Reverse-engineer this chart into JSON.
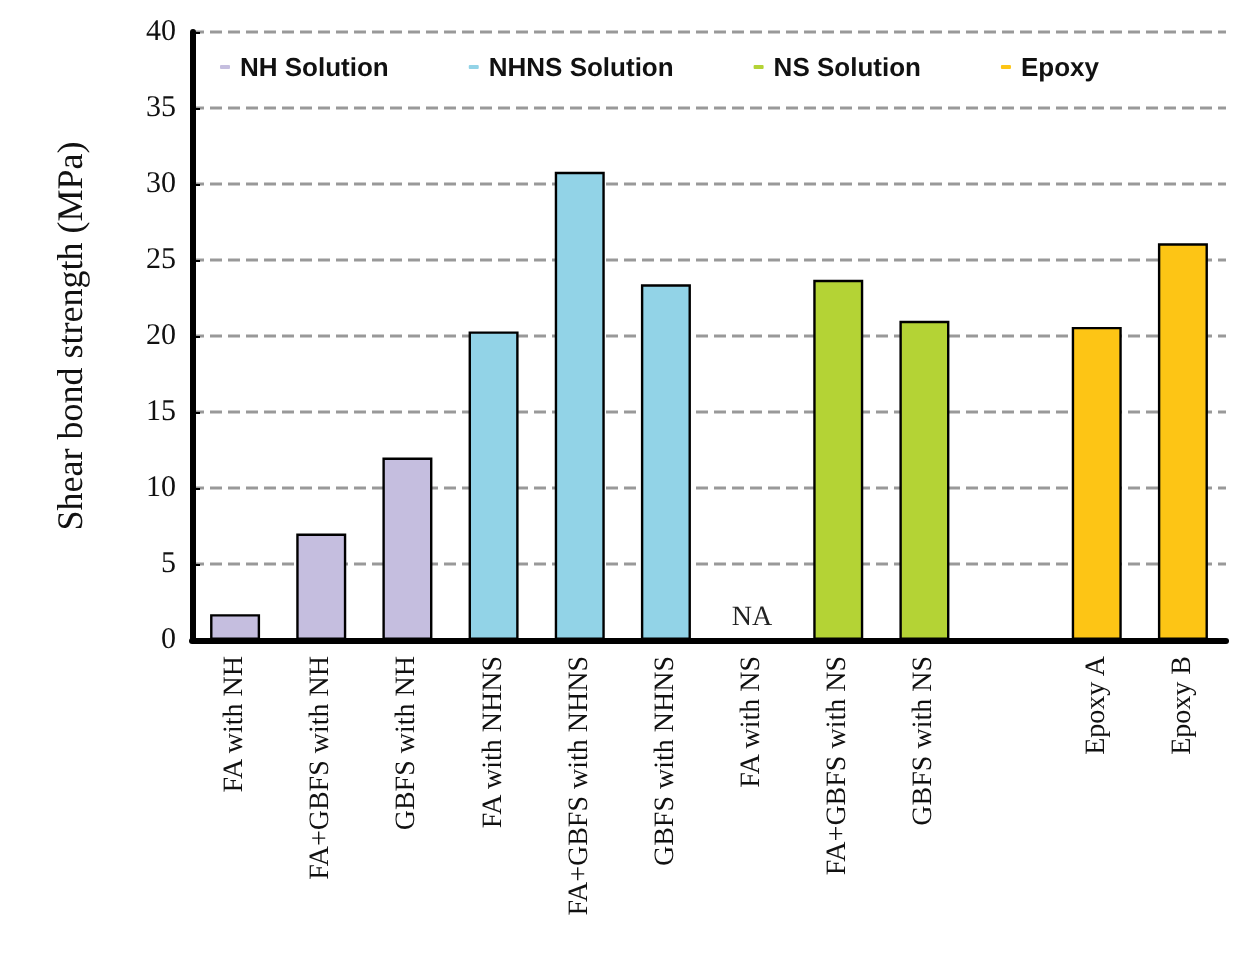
{
  "chart_data": {
    "type": "bar",
    "ylabel": "Shear bond strength (MPa)",
    "categories": [
      "FA with NH",
      "FA+GBFS with NH",
      "GBFS with NH",
      "FA with NHNS",
      "FA+GBFS with NHNS",
      "GBFS with NHNS",
      "FA with NS",
      "FA+GBFS with NS",
      "GBFS with NS",
      null,
      "Epoxy A",
      "Epoxy B"
    ],
    "series": [
      {
        "name": "NH Solution",
        "color": "#c5bedf",
        "values": [
          1.7,
          7.0,
          12.0,
          null,
          null,
          null,
          null,
          null,
          null,
          null,
          null,
          null
        ]
      },
      {
        "name": "NHNS Solution",
        "color": "#92d3e7",
        "values": [
          null,
          null,
          null,
          20.3,
          30.8,
          23.4,
          null,
          null,
          null,
          null,
          null,
          null
        ]
      },
      {
        "name": "NS Solution",
        "color": "#b4d335",
        "values": [
          null,
          null,
          null,
          null,
          null,
          null,
          null,
          23.7,
          21.0,
          null,
          null,
          null
        ]
      },
      {
        "name": "Epoxy",
        "color": "#fdc515",
        "values": [
          null,
          null,
          null,
          null,
          null,
          null,
          null,
          null,
          null,
          null,
          20.6,
          26.1
        ]
      }
    ],
    "annotations": [
      "NA"
    ],
    "ylim": [
      0,
      40
    ],
    "yticks": [
      0,
      5,
      10,
      15,
      20,
      25,
      30,
      35,
      40
    ],
    "grid": "y",
    "legend": "top left"
  }
}
